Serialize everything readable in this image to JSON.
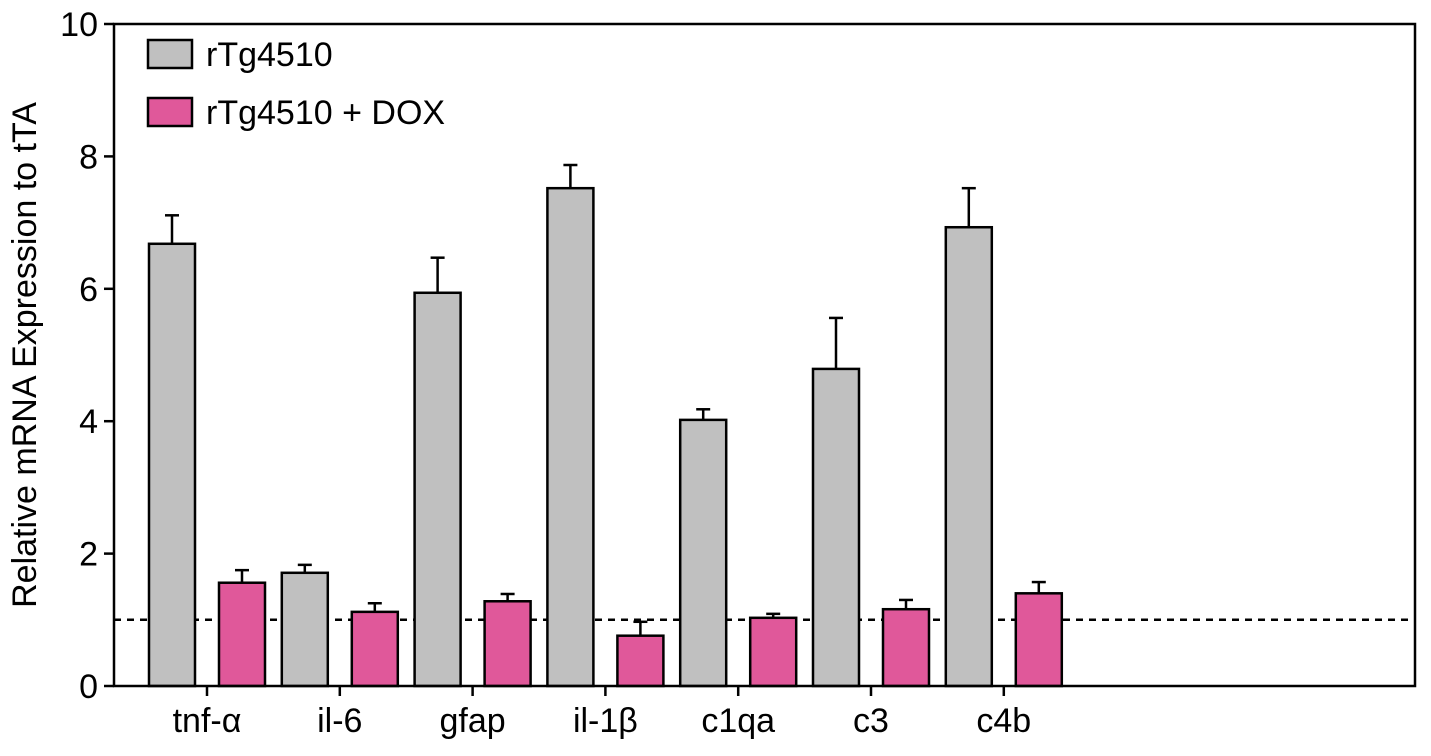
{
  "chart_data": {
    "type": "bar",
    "title": "",
    "xlabel": "",
    "ylabel": "Relative mRNA Expression to tTA",
    "ylim": [
      0,
      10
    ],
    "yticks": [
      "0",
      "2",
      "4",
      "6",
      "8",
      "10"
    ],
    "grid": false,
    "legend_position": "top-left",
    "categories": [
      "tnf-α",
      "il-6",
      "gfap",
      "il-1β",
      "c1qa",
      "c3",
      "c4b"
    ],
    "reference_line": 1,
    "series": [
      {
        "name": "rTg4510",
        "color": "#c0c0c0",
        "values": [
          6.68,
          1.71,
          5.94,
          7.52,
          4.02,
          4.79,
          6.93
        ],
        "error": [
          0.43,
          0.12,
          0.53,
          0.35,
          0.16,
          0.77,
          0.59
        ]
      },
      {
        "name": "rTg4510 + DOX",
        "color": "#e0589a",
        "values": [
          1.56,
          1.12,
          1.28,
          0.76,
          1.03,
          1.16,
          1.4
        ],
        "error": [
          0.19,
          0.13,
          0.11,
          0.21,
          0.06,
          0.14,
          0.17
        ]
      }
    ]
  }
}
